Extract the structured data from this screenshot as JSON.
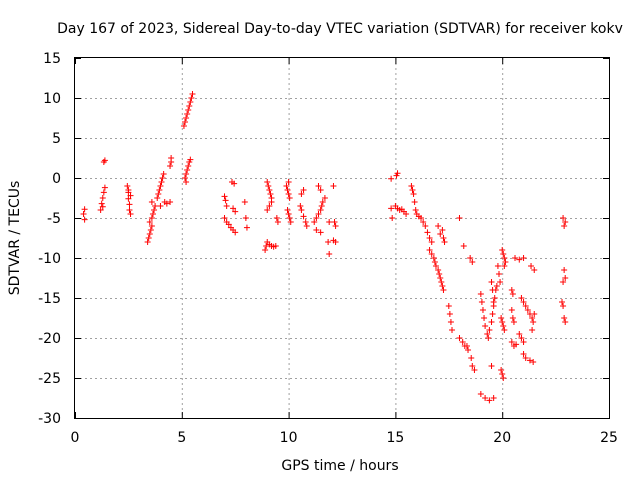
{
  "chart_data": {
    "type": "scatter",
    "title": "Day 167 of 2023, Sidereal Day-to-day VTEC variation (SDTVAR) for receiver kokv",
    "xlabel": "GPS time / hours",
    "ylabel": "SDTVAR / TECUs",
    "xlim": [
      0,
      25
    ],
    "ylim": [
      -30,
      15
    ],
    "xticks": [
      0,
      5,
      10,
      15,
      20,
      25
    ],
    "yticks": [
      -30,
      -25,
      -20,
      -15,
      -10,
      -5,
      0,
      5,
      10,
      15
    ],
    "grid": true,
    "marker": "+",
    "color": "#ff0000",
    "series": [
      {
        "name": "SDTVAR",
        "points": [
          [
            0.4,
            -4.5
          ],
          [
            0.45,
            -5.2
          ],
          [
            0.45,
            -3.9
          ],
          [
            1.2,
            -4.0
          ],
          [
            1.25,
            -3.2
          ],
          [
            1.3,
            -2.5
          ],
          [
            1.35,
            -1.8
          ],
          [
            1.4,
            -1.2
          ],
          [
            1.3,
            -3.6
          ],
          [
            1.35,
            2.0
          ],
          [
            1.4,
            2.2
          ],
          [
            2.45,
            -1.0
          ],
          [
            2.5,
            -1.8
          ],
          [
            2.5,
            -2.6
          ],
          [
            2.55,
            -3.3
          ],
          [
            2.55,
            -4.0
          ],
          [
            2.6,
            -4.5
          ],
          [
            2.5,
            -1.5
          ],
          [
            2.6,
            -2.2
          ],
          [
            3.4,
            -8.0
          ],
          [
            3.45,
            -7.5
          ],
          [
            3.5,
            -7.0
          ],
          [
            3.55,
            -6.5
          ],
          [
            3.6,
            -6.0
          ],
          [
            3.5,
            -5.5
          ],
          [
            3.6,
            -5.0
          ],
          [
            3.65,
            -4.5
          ],
          [
            3.7,
            -4.0
          ],
          [
            3.75,
            -3.5
          ],
          [
            3.6,
            -3.0
          ],
          [
            3.85,
            -2.5
          ],
          [
            3.9,
            -2.0
          ],
          [
            3.95,
            -1.5
          ],
          [
            4.0,
            -1.0
          ],
          [
            4.05,
            -0.5
          ],
          [
            4.1,
            0.0
          ],
          [
            4.15,
            0.5
          ],
          [
            4.0,
            -3.5
          ],
          [
            4.2,
            -3.0
          ],
          [
            4.3,
            -3.2
          ],
          [
            4.45,
            1.5
          ],
          [
            4.5,
            2.0
          ],
          [
            4.5,
            2.5
          ],
          [
            4.45,
            -3.0
          ],
          [
            5.1,
            6.5
          ],
          [
            5.15,
            7.0
          ],
          [
            5.2,
            7.5
          ],
          [
            5.25,
            8.0
          ],
          [
            5.3,
            8.5
          ],
          [
            5.35,
            9.0
          ],
          [
            5.4,
            9.5
          ],
          [
            5.45,
            10.0
          ],
          [
            5.5,
            10.5
          ],
          [
            5.15,
            0.0
          ],
          [
            5.2,
            0.5
          ],
          [
            5.25,
            1.0
          ],
          [
            5.3,
            1.5
          ],
          [
            5.35,
            2.0
          ],
          [
            5.4,
            2.3
          ],
          [
            5.2,
            -0.5
          ],
          [
            7.0,
            -2.3
          ],
          [
            7.05,
            -2.8
          ],
          [
            7.1,
            -3.5
          ],
          [
            7.0,
            -5.0
          ],
          [
            7.1,
            -5.5
          ],
          [
            7.2,
            -5.8
          ],
          [
            7.3,
            -6.2
          ],
          [
            7.4,
            -6.5
          ],
          [
            7.5,
            -6.8
          ],
          [
            7.35,
            -0.5
          ],
          [
            7.45,
            -0.7
          ],
          [
            7.4,
            -3.8
          ],
          [
            7.5,
            -4.2
          ],
          [
            7.95,
            -3.0
          ],
          [
            8.0,
            -5.0
          ],
          [
            8.05,
            -6.2
          ],
          [
            8.9,
            -9.0
          ],
          [
            8.95,
            -8.5
          ],
          [
            9.0,
            -8.0
          ],
          [
            9.1,
            -8.3
          ],
          [
            9.2,
            -8.5
          ],
          [
            9.3,
            -8.6
          ],
          [
            9.4,
            -8.5
          ],
          [
            9.0,
            -0.5
          ],
          [
            9.05,
            -1.0
          ],
          [
            9.1,
            -1.5
          ],
          [
            9.15,
            -2.0
          ],
          [
            9.2,
            -2.5
          ],
          [
            9.1,
            -3.5
          ],
          [
            9.0,
            -4.0
          ],
          [
            9.2,
            -3.0
          ],
          [
            9.5,
            -5.5
          ],
          [
            9.45,
            -5.0
          ],
          [
            9.9,
            -1.0
          ],
          [
            9.95,
            -1.5
          ],
          [
            10.0,
            -2.0
          ],
          [
            10.05,
            -2.5
          ],
          [
            9.95,
            -4.0
          ],
          [
            10.0,
            -4.5
          ],
          [
            10.05,
            -5.0
          ],
          [
            10.1,
            -5.5
          ],
          [
            10.0,
            -0.5
          ],
          [
            10.55,
            -3.5
          ],
          [
            10.6,
            -4.0
          ],
          [
            10.7,
            -4.8
          ],
          [
            10.8,
            -5.5
          ],
          [
            10.85,
            -6.0
          ],
          [
            10.6,
            -2.0
          ],
          [
            10.7,
            -1.5
          ],
          [
            11.2,
            -5.5
          ],
          [
            11.3,
            -5.0
          ],
          [
            11.4,
            -4.5
          ],
          [
            11.5,
            -4.0
          ],
          [
            11.55,
            -3.5
          ],
          [
            11.6,
            -3.0
          ],
          [
            11.7,
            -2.5
          ],
          [
            11.3,
            -6.5
          ],
          [
            11.5,
            -6.8
          ],
          [
            11.4,
            -1.0
          ],
          [
            11.5,
            -1.5
          ],
          [
            11.9,
            -5.5
          ],
          [
            11.85,
            -8.0
          ],
          [
            11.9,
            -9.5
          ],
          [
            12.1,
            -1.0
          ],
          [
            12.1,
            -7.8
          ],
          [
            12.2,
            -8.0
          ],
          [
            12.15,
            -5.5
          ],
          [
            12.2,
            -6.0
          ],
          [
            14.8,
            -0.1
          ],
          [
            14.8,
            -3.8
          ],
          [
            14.85,
            -5.0
          ],
          [
            15.05,
            0.3
          ],
          [
            15.1,
            0.6
          ],
          [
            15.0,
            -3.5
          ],
          [
            15.1,
            -3.8
          ],
          [
            15.2,
            -4.0
          ],
          [
            15.3,
            -3.9
          ],
          [
            15.4,
            -4.2
          ],
          [
            15.5,
            -4.5
          ],
          [
            15.75,
            -1.0
          ],
          [
            15.8,
            -1.5
          ],
          [
            15.85,
            -2.0
          ],
          [
            15.9,
            -3.0
          ],
          [
            15.95,
            -4.0
          ],
          [
            16.0,
            -4.5
          ],
          [
            16.1,
            -4.8
          ],
          [
            16.2,
            -5.0
          ],
          [
            16.3,
            -5.5
          ],
          [
            16.4,
            -6.0
          ],
          [
            16.5,
            -6.8
          ],
          [
            16.6,
            -7.5
          ],
          [
            16.7,
            -8.0
          ],
          [
            16.6,
            -9.0
          ],
          [
            16.7,
            -9.5
          ],
          [
            16.8,
            -10.0
          ],
          [
            16.85,
            -10.5
          ],
          [
            16.9,
            -11.0
          ],
          [
            17.0,
            -11.5
          ],
          [
            17.05,
            -12.0
          ],
          [
            17.1,
            -12.5
          ],
          [
            17.15,
            -13.0
          ],
          [
            17.2,
            -13.5
          ],
          [
            17.25,
            -14.0
          ],
          [
            17.0,
            -6.0
          ],
          [
            17.1,
            -7.0
          ],
          [
            17.2,
            -6.5
          ],
          [
            17.25,
            -7.5
          ],
          [
            17.3,
            -8.0
          ],
          [
            17.5,
            -16.0
          ],
          [
            17.55,
            -17.0
          ],
          [
            17.6,
            -18.0
          ],
          [
            17.65,
            -19.0
          ],
          [
            18.0,
            -5.0
          ],
          [
            18.0,
            -20.0
          ],
          [
            18.15,
            -20.5
          ],
          [
            18.25,
            -21.0
          ],
          [
            18.4,
            -21.5
          ],
          [
            18.35,
            -21.0
          ],
          [
            18.2,
            -8.5
          ],
          [
            18.5,
            -10.0
          ],
          [
            18.6,
            -10.5
          ],
          [
            18.55,
            -22.5
          ],
          [
            18.6,
            -23.5
          ],
          [
            18.7,
            -24.0
          ],
          [
            19.0,
            -14.5
          ],
          [
            19.05,
            -15.5
          ],
          [
            19.1,
            -16.5
          ],
          [
            19.15,
            -17.5
          ],
          [
            19.2,
            -18.5
          ],
          [
            19.3,
            -19.5
          ],
          [
            19.35,
            -20.0
          ],
          [
            19.4,
            -19.0
          ],
          [
            19.5,
            -18.0
          ],
          [
            19.55,
            -17.0
          ],
          [
            19.6,
            -16.0
          ],
          [
            19.65,
            -15.0
          ],
          [
            19.7,
            -14.0
          ],
          [
            19.75,
            -13.5
          ],
          [
            19.5,
            -13.0
          ],
          [
            19.55,
            -14.0
          ],
          [
            19.6,
            -15.5
          ],
          [
            19.0,
            -27.0
          ],
          [
            19.2,
            -27.5
          ],
          [
            19.4,
            -27.8
          ],
          [
            19.6,
            -27.5
          ],
          [
            19.5,
            -23.5
          ],
          [
            19.8,
            -11.0
          ],
          [
            19.85,
            -12.0
          ],
          [
            19.9,
            -13.0
          ],
          [
            19.95,
            -24.0
          ],
          [
            20.0,
            -24.5
          ],
          [
            20.05,
            -25.0
          ],
          [
            19.95,
            -17.5
          ],
          [
            20.0,
            -18.0
          ],
          [
            20.05,
            -18.5
          ],
          [
            20.1,
            -19.0
          ],
          [
            20.0,
            -9.0
          ],
          [
            20.05,
            -9.5
          ],
          [
            20.1,
            -10.0
          ],
          [
            20.15,
            -10.5
          ],
          [
            20.1,
            -11.0
          ],
          [
            20.45,
            -14.0
          ],
          [
            20.5,
            -14.5
          ],
          [
            20.45,
            -16.5
          ],
          [
            20.5,
            -17.5
          ],
          [
            20.55,
            -18.0
          ],
          [
            20.45,
            -20.5
          ],
          [
            20.55,
            -21.0
          ],
          [
            20.65,
            -20.8
          ],
          [
            20.6,
            -10.0
          ],
          [
            20.8,
            -10.2
          ],
          [
            21.0,
            -10.0
          ],
          [
            20.8,
            -19.5
          ],
          [
            20.9,
            -20.0
          ],
          [
            21.0,
            -20.5
          ],
          [
            20.9,
            -15.0
          ],
          [
            21.0,
            -15.5
          ],
          [
            21.1,
            -16.0
          ],
          [
            21.2,
            -16.5
          ],
          [
            21.3,
            -17.0
          ],
          [
            21.4,
            -17.5
          ],
          [
            21.45,
            -18.0
          ],
          [
            21.4,
            -19.0
          ],
          [
            21.5,
            -17.0
          ],
          [
            21.0,
            -22.0
          ],
          [
            21.1,
            -22.5
          ],
          [
            21.3,
            -22.8
          ],
          [
            21.45,
            -23.0
          ],
          [
            21.35,
            -11.0
          ],
          [
            21.5,
            -11.5
          ],
          [
            22.85,
            -5.0
          ],
          [
            22.9,
            -6.0
          ],
          [
            22.95,
            -5.5
          ],
          [
            22.8,
            -15.5
          ],
          [
            22.85,
            -16.0
          ],
          [
            22.9,
            -17.5
          ],
          [
            22.95,
            -18.0
          ],
          [
            22.9,
            -11.5
          ],
          [
            22.95,
            -12.5
          ],
          [
            22.85,
            -13.0
          ]
        ]
      }
    ]
  }
}
